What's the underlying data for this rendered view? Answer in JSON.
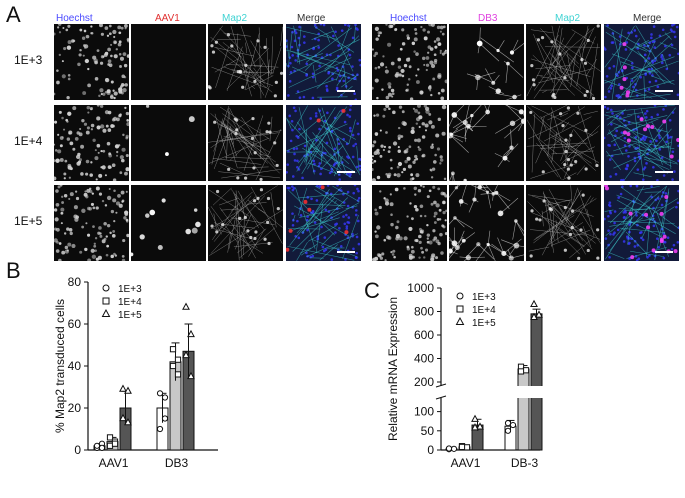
{
  "panels": {
    "A": {
      "label": "A",
      "left_headers": [
        {
          "text": "Hoechst",
          "color": "#4a4aff"
        },
        {
          "text": "AAV1",
          "color": "#e03030"
        },
        {
          "text": "Map2",
          "color": "#3fd3d3"
        },
        {
          "text": "Merge",
          "color": "#333333"
        }
      ],
      "right_headers": [
        {
          "text": "Hoechst",
          "color": "#4a4aff"
        },
        {
          "text": "DB3",
          "color": "#e040e0"
        },
        {
          "text": "Map2",
          "color": "#3fd3d3"
        },
        {
          "text": "Merge",
          "color": "#333333"
        }
      ],
      "rows": [
        "1E+3",
        "1E+4",
        "1E+5"
      ]
    },
    "B": {
      "label": "B"
    },
    "C": {
      "label": "C"
    }
  },
  "chart_data": [
    {
      "type": "bar",
      "panel": "B",
      "ylabel": "% Map2 transduced cells",
      "categories": [
        "AAV1",
        "DB3"
      ],
      "ylim": [
        0,
        80
      ],
      "yticks": [
        0,
        20,
        40,
        60,
        80
      ],
      "series": [
        {
          "name": "1E+3",
          "marker": "circle",
          "fill": "#ffffff",
          "values": [
            2,
            20
          ],
          "errors": [
            1,
            7
          ],
          "points": [
            [
              1,
              3,
              2,
              1
            ],
            [
              27,
              25,
              10,
              15
            ]
          ]
        },
        {
          "name": "1E+4",
          "marker": "square",
          "fill": "#c8c8c8",
          "values": [
            4,
            42
          ],
          "errors": [
            2,
            9
          ],
          "points": [
            [
              6,
              4,
              2,
              3
            ],
            [
              48,
              43,
              40,
              36
            ]
          ]
        },
        {
          "name": "1E+5",
          "marker": "triangle",
          "fill": "#555555",
          "values": [
            20,
            47
          ],
          "errors": [
            8,
            13
          ],
          "points": [
            [
              29,
              28,
              15,
              13
            ],
            [
              68,
              55,
              45,
              35
            ]
          ]
        }
      ],
      "legend": {
        "position": "top-left",
        "entries": [
          "1E+3",
          "1E+4",
          "1E+5"
        ]
      }
    },
    {
      "type": "bar",
      "panel": "C",
      "ylabel": "Relative mRNA Expression",
      "categories": [
        "AAV1",
        "DB-3"
      ],
      "broken_axis": {
        "lower": [
          0,
          125
        ],
        "upper": [
          200,
          1000
        ]
      },
      "yticks_lower": [
        0,
        50,
        100
      ],
      "yticks_upper": [
        200,
        400,
        600,
        800,
        1000
      ],
      "series": [
        {
          "name": "1E+3",
          "marker": "circle",
          "fill": "#ffffff",
          "values": [
            3,
            62
          ],
          "errors": [
            1,
            15
          ],
          "points": [
            [
              2,
              3,
              4
            ],
            [
              70,
              65,
              50
            ]
          ]
        },
        {
          "name": "1E+4",
          "marker": "square",
          "fill": "#c8c8c8",
          "values": [
            8,
            310
          ],
          "errors": [
            3,
            30
          ],
          "points": [
            [
              10,
              7,
              8
            ],
            [
              330,
              300,
              290
            ]
          ]
        },
        {
          "name": "1E+5",
          "marker": "triangle",
          "fill": "#555555",
          "values": [
            65,
            780
          ],
          "errors": [
            15,
            40
          ],
          "points": [
            [
              80,
              60,
              58
            ],
            [
              860,
              770,
              750
            ]
          ]
        }
      ],
      "legend": {
        "position": "top-left",
        "entries": [
          "1E+3",
          "1E+4",
          "1E+5"
        ]
      }
    }
  ]
}
